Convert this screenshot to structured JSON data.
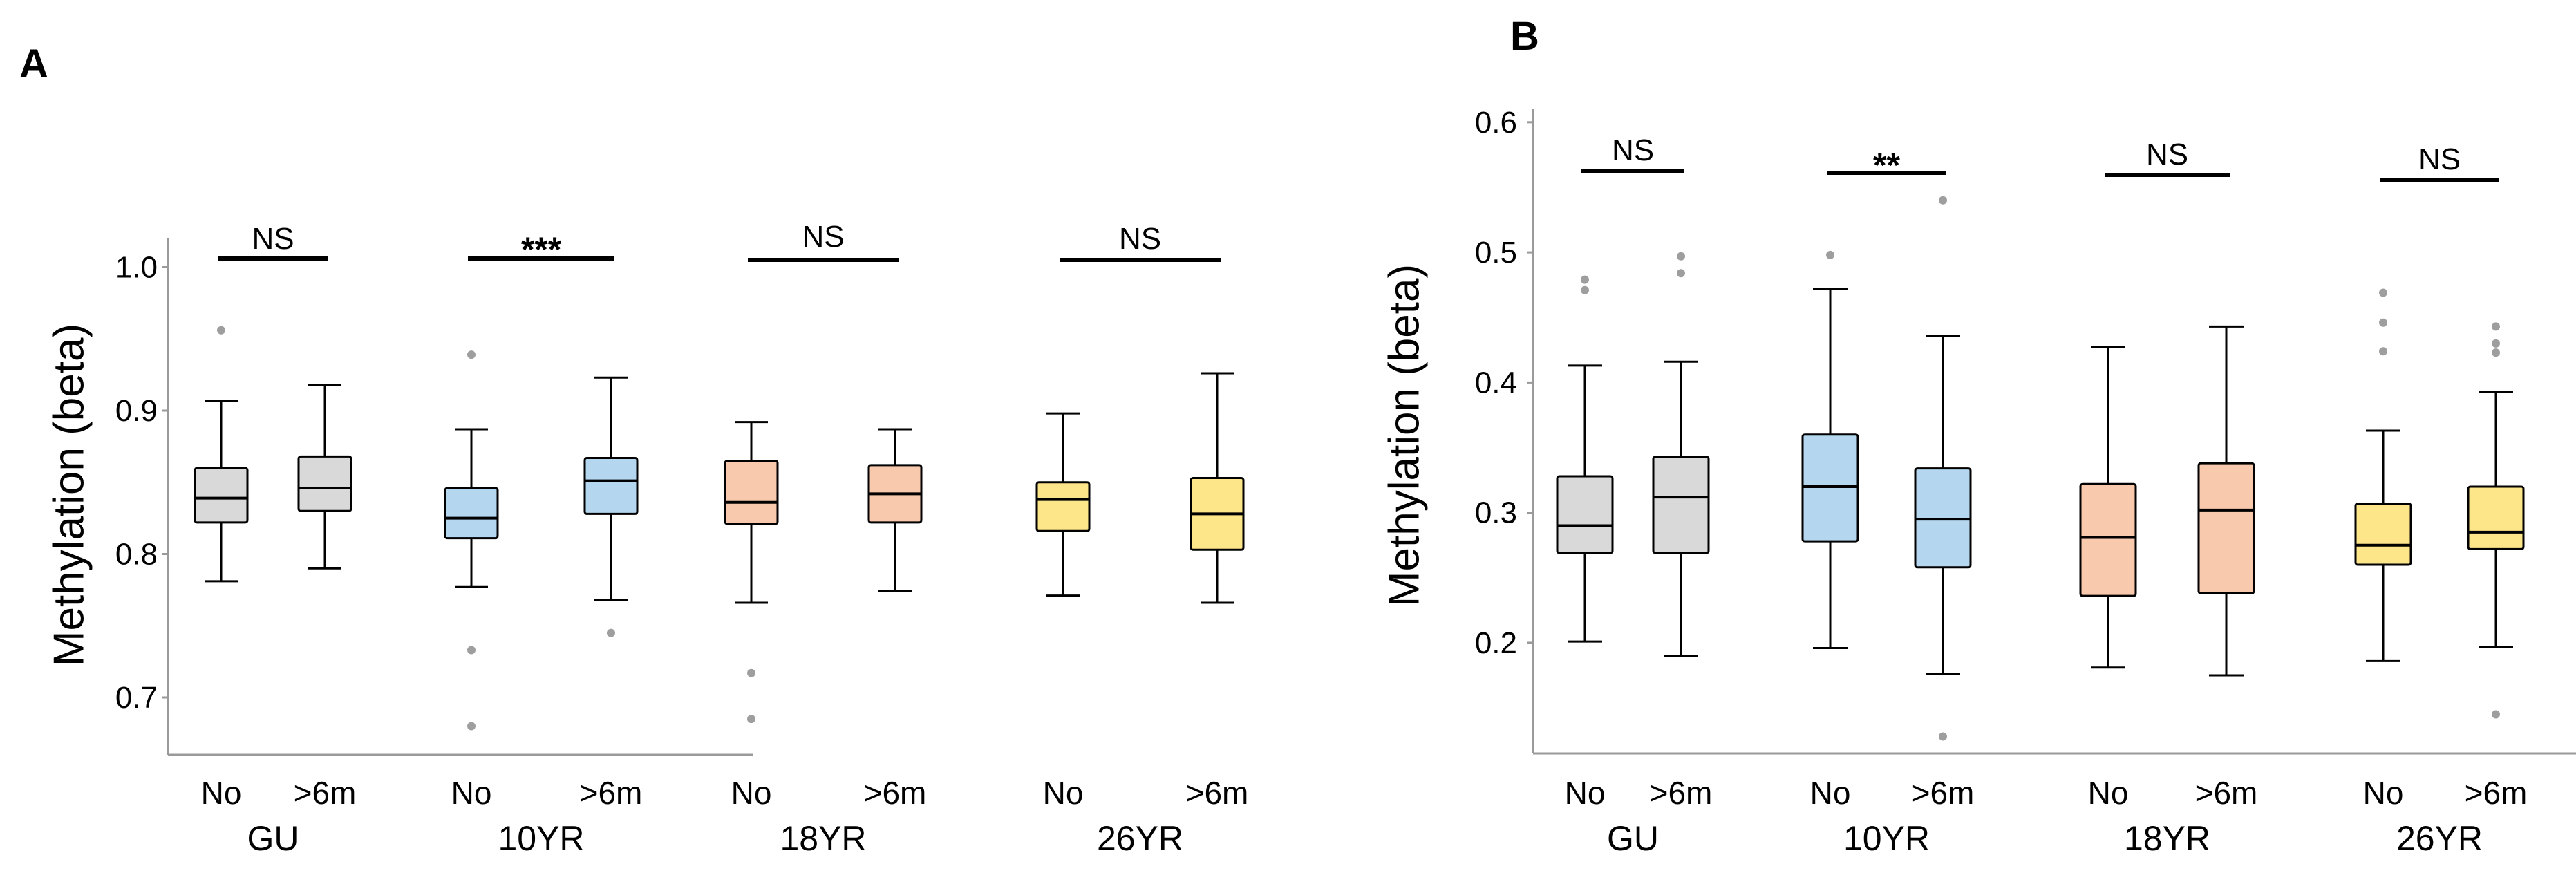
{
  "chart_data": [
    {
      "panel": "A",
      "type": "box",
      "ylabel": "Methylation (beta)",
      "ylim": [
        0.66,
        1.02
      ],
      "yticks": [
        0.7,
        0.8,
        0.9,
        1.0
      ],
      "ytick_labels": [
        "0.7",
        "0.8",
        "0.9",
        "1.0"
      ],
      "categories": [
        "No",
        ">6m"
      ],
      "groups": [
        {
          "name": "GU",
          "color": "#d9d9d9",
          "sig": "NS",
          "boxes": [
            {
              "label": "No",
              "min": 0.781,
              "q1": 0.822,
              "median": 0.839,
              "q3": 0.86,
              "max": 0.907,
              "outliers": [
                0.956
              ]
            },
            {
              "label": ">6m",
              "min": 0.79,
              "q1": 0.83,
              "median": 0.846,
              "q3": 0.868,
              "max": 0.918,
              "outliers": []
            }
          ]
        },
        {
          "name": "10YR",
          "color": "#b4d7ef",
          "sig": "***",
          "boxes": [
            {
              "label": "No",
              "min": 0.777,
              "q1": 0.811,
              "median": 0.825,
              "q3": 0.846,
              "max": 0.887,
              "outliers": [
                0.939,
                0.733,
                0.68
              ]
            },
            {
              "label": ">6m",
              "min": 0.768,
              "q1": 0.828,
              "median": 0.851,
              "q3": 0.867,
              "max": 0.923,
              "outliers": [
                0.745
              ]
            }
          ]
        },
        {
          "name": "18YR",
          "color": "#f9c9ad",
          "sig": "NS",
          "boxes": [
            {
              "label": "No",
              "min": 0.766,
              "q1": 0.821,
              "median": 0.836,
              "q3": 0.865,
              "max": 0.892,
              "outliers": [
                0.717,
                0.685
              ]
            },
            {
              "label": ">6m",
              "min": 0.774,
              "q1": 0.822,
              "median": 0.842,
              "q3": 0.862,
              "max": 0.887,
              "outliers": []
            }
          ]
        },
        {
          "name": "26YR",
          "color": "#fde58a",
          "sig": "NS",
          "boxes": [
            {
              "label": "No",
              "min": 0.771,
              "q1": 0.816,
              "median": 0.838,
              "q3": 0.85,
              "max": 0.898,
              "outliers": []
            },
            {
              "label": ">6m",
              "min": 0.766,
              "q1": 0.803,
              "median": 0.828,
              "q3": 0.853,
              "max": 0.926,
              "outliers": []
            }
          ]
        }
      ]
    },
    {
      "panel": "B",
      "type": "box",
      "ylabel": "Methylation (beta)",
      "ylim": [
        0.115,
        0.61
      ],
      "yticks": [
        0.2,
        0.3,
        0.4,
        0.5,
        0.6
      ],
      "ytick_labels": [
        "0.2",
        "0.3",
        "0.4",
        "0.5",
        "0.6"
      ],
      "categories": [
        "No",
        ">6m"
      ],
      "groups": [
        {
          "name": "GU",
          "color": "#d9d9d9",
          "sig": "NS",
          "boxes": [
            {
              "label": "No",
              "min": 0.201,
              "q1": 0.269,
              "median": 0.29,
              "q3": 0.328,
              "max": 0.413,
              "outliers": [
                0.479,
                0.471
              ]
            },
            {
              "label": ">6m",
              "min": 0.19,
              "q1": 0.269,
              "median": 0.312,
              "q3": 0.343,
              "max": 0.416,
              "outliers": [
                0.497,
                0.484
              ]
            }
          ]
        },
        {
          "name": "10YR",
          "color": "#b4d7ef",
          "sig": "**",
          "boxes": [
            {
              "label": "No",
              "min": 0.196,
              "q1": 0.278,
              "median": 0.32,
              "q3": 0.36,
              "max": 0.472,
              "outliers": [
                0.498
              ]
            },
            {
              "label": ">6m",
              "min": 0.176,
              "q1": 0.258,
              "median": 0.295,
              "q3": 0.334,
              "max": 0.436,
              "outliers": [
                0.54,
                0.128
              ]
            }
          ]
        },
        {
          "name": "18YR",
          "color": "#f9c9ad",
          "sig": "NS",
          "boxes": [
            {
              "label": "No",
              "min": 0.181,
              "q1": 0.236,
              "median": 0.281,
              "q3": 0.322,
              "max": 0.427,
              "outliers": []
            },
            {
              "label": ">6m",
              "min": 0.175,
              "q1": 0.238,
              "median": 0.302,
              "q3": 0.338,
              "max": 0.443,
              "outliers": []
            }
          ]
        },
        {
          "name": "26YR",
          "color": "#fde58a",
          "sig": "NS",
          "boxes": [
            {
              "label": "No",
              "min": 0.186,
              "q1": 0.26,
              "median": 0.275,
              "q3": 0.307,
              "max": 0.363,
              "outliers": [
                0.469,
                0.446,
                0.424
              ]
            },
            {
              "label": ">6m",
              "min": 0.197,
              "q1": 0.272,
              "median": 0.285,
              "q3": 0.32,
              "max": 0.393,
              "outliers": [
                0.443,
                0.43,
                0.423,
                0.145
              ]
            }
          ]
        }
      ]
    }
  ]
}
